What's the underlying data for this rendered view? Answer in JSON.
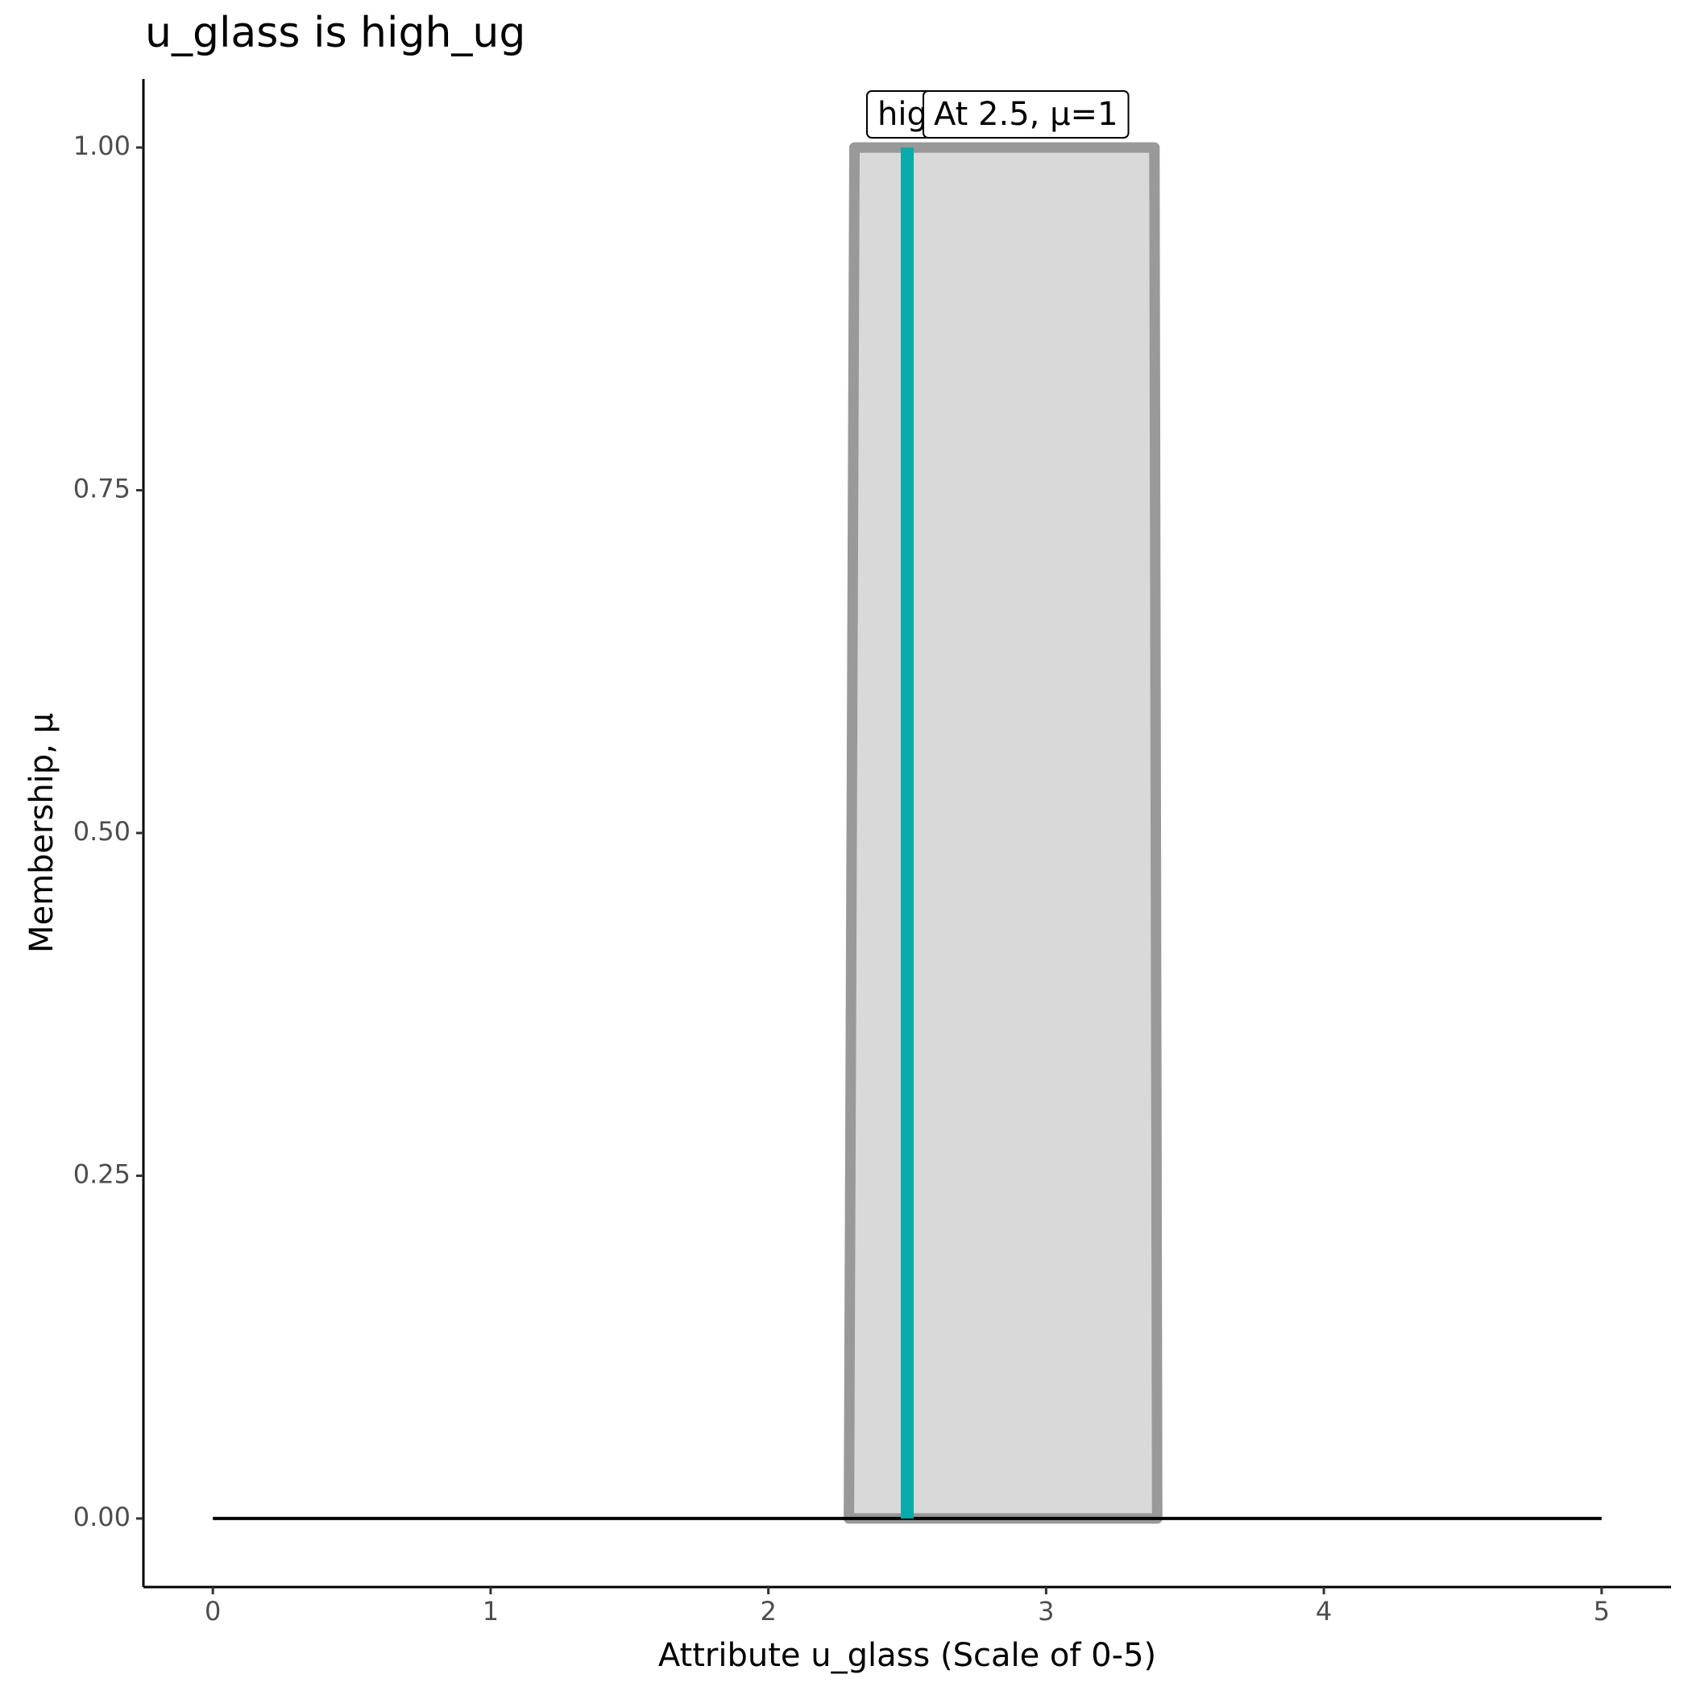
{
  "chart_data": {
    "type": "area",
    "title": "u_glass is high_ug",
    "x_label": "Attribute u_glass (Scale of 0-5)",
    "y_label": "Membership, μ",
    "xlim": [
      -0.25,
      5.25
    ],
    "ylim": [
      -0.05,
      1.05
    ],
    "xticks": [
      0,
      1,
      2,
      3,
      4,
      5
    ],
    "yticks": [
      {
        "value": 0,
        "label": "0.00"
      },
      {
        "value": 0.25,
        "label": "0.25"
      },
      {
        "value": 0.5,
        "label": "0.50"
      },
      {
        "value": 0.75,
        "label": "0.75"
      },
      {
        "value": 1,
        "label": "1.00"
      }
    ],
    "series": [
      {
        "x": [
          2.29,
          2.31,
          3.39,
          3.4
        ],
        "values": [
          0,
          1,
          1,
          0
        ],
        "color": "#999999",
        "fill": "#d9d9d9"
      }
    ],
    "baseline": {
      "x": [
        0,
        5
      ],
      "values": [
        0,
        0
      ],
      "color": "#000000"
    },
    "marker": {
      "x": [
        2.5,
        2.5
      ],
      "values": [
        0,
        1
      ],
      "color": "#0aabab"
    },
    "annotations": [
      "high_ug",
      "At 2.5, μ=1"
    ]
  }
}
